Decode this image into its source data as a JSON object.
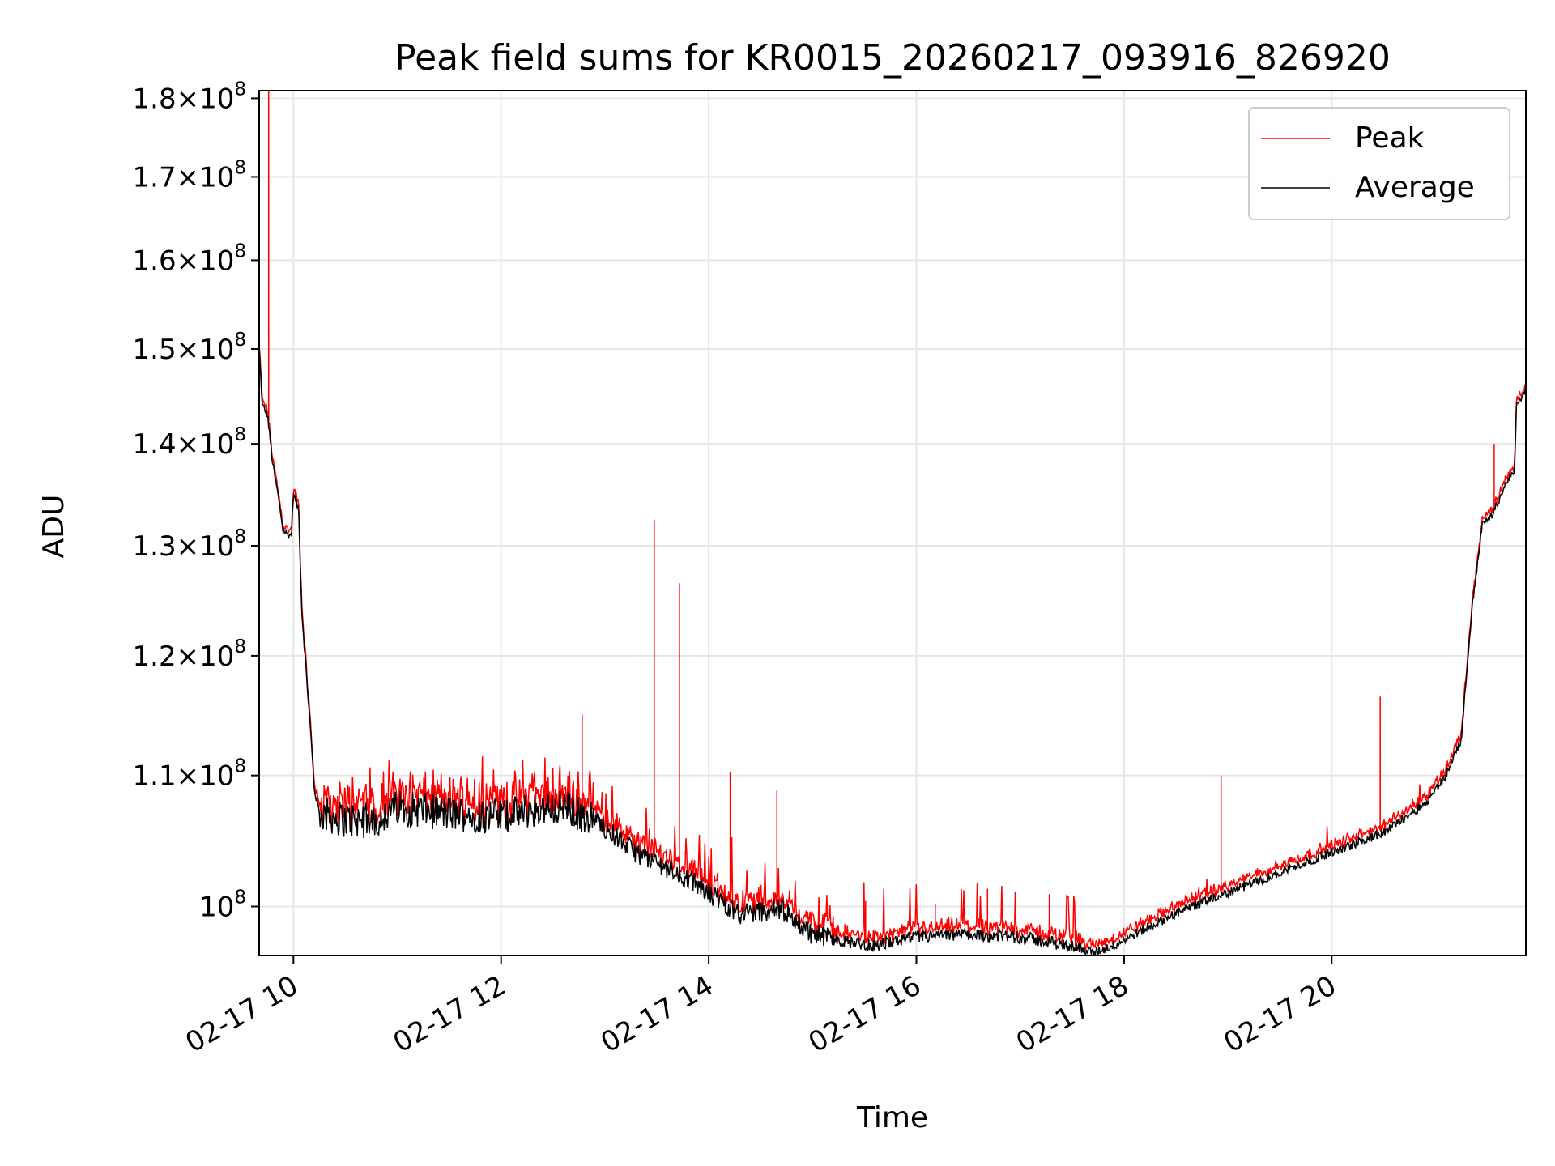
{
  "chart_data": {
    "type": "line",
    "title": "Peak field sums for KR0015_20260217_093916_826920",
    "xlabel": "Time",
    "ylabel": "ADU",
    "yscale": "log",
    "grid": true,
    "legend_position": "top-right",
    "xlim_hours": [
      9.67,
      21.87
    ],
    "ylim": [
      96500000,
      181000000
    ],
    "x_ticks": [
      {
        "value": 10,
        "label": "02-17 10"
      },
      {
        "value": 12,
        "label": "02-17 12"
      },
      {
        "value": 14,
        "label": "02-17 14"
      },
      {
        "value": 16,
        "label": "02-17 16"
      },
      {
        "value": 18,
        "label": "02-17 18"
      },
      {
        "value": 20,
        "label": "02-17 20"
      }
    ],
    "y_ticks": [
      {
        "value": 100000000,
        "mantissa": "",
        "exponent": "8",
        "label": "10^8"
      },
      {
        "value": 110000000,
        "mantissa": "1.1",
        "exponent": "8",
        "label": "1.1×10^8"
      },
      {
        "value": 120000000,
        "mantissa": "1.2",
        "exponent": "8",
        "label": "1.2×10^8"
      },
      {
        "value": 130000000,
        "mantissa": "1.3",
        "exponent": "8",
        "label": "1.3×10^8"
      },
      {
        "value": 140000000,
        "mantissa": "1.4",
        "exponent": "8",
        "label": "1.4×10^8"
      },
      {
        "value": 150000000,
        "mantissa": "1.5",
        "exponent": "8",
        "label": "1.5×10^8"
      },
      {
        "value": 160000000,
        "mantissa": "1.6",
        "exponent": "8",
        "label": "1.6×10^8"
      },
      {
        "value": 170000000,
        "mantissa": "1.7",
        "exponent": "8",
        "label": "1.7×10^8"
      },
      {
        "value": 180000000,
        "mantissa": "1.8",
        "exponent": "8",
        "label": "1.8×10^8"
      }
    ],
    "series": [
      {
        "name": "Peak",
        "color": "#ff0000",
        "key": "peak"
      },
      {
        "name": "Average",
        "color": "#000000",
        "key": "avg"
      }
    ],
    "baseline_units": "1e6 ADU",
    "baseline": [
      [
        9.67,
        150
      ],
      [
        9.7,
        144
      ],
      [
        9.75,
        143
      ],
      [
        9.8,
        138
      ],
      [
        9.85,
        135
      ],
      [
        9.9,
        131.5
      ],
      [
        9.95,
        131
      ],
      [
        9.98,
        131
      ],
      [
        10.0,
        135
      ],
      [
        10.05,
        133.5
      ],
      [
        10.08,
        124
      ],
      [
        10.12,
        119
      ],
      [
        10.17,
        113
      ],
      [
        10.2,
        109
      ],
      [
        10.25,
        107
      ],
      [
        10.5,
        106.5
      ],
      [
        10.8,
        106.5
      ],
      [
        11.0,
        107.5
      ],
      [
        11.5,
        107
      ],
      [
        12.0,
        106.8
      ],
      [
        12.3,
        107.3
      ],
      [
        12.6,
        107.5
      ],
      [
        12.9,
        106.5
      ],
      [
        13.3,
        104
      ],
      [
        13.7,
        102.5
      ],
      [
        14.0,
        101
      ],
      [
        14.3,
        99.5
      ],
      [
        14.7,
        99.8
      ],
      [
        15.0,
        98
      ],
      [
        15.3,
        97.5
      ],
      [
        15.6,
        97.2
      ],
      [
        16.0,
        97.8
      ],
      [
        16.5,
        98
      ],
      [
        17.0,
        97.8
      ],
      [
        17.3,
        97.4
      ],
      [
        17.5,
        97.2
      ],
      [
        17.7,
        96.7
      ],
      [
        17.9,
        97.2
      ],
      [
        18.1,
        98
      ],
      [
        18.5,
        99.5
      ],
      [
        19.0,
        101
      ],
      [
        19.5,
        102.5
      ],
      [
        20.0,
        104
      ],
      [
        20.5,
        105.5
      ],
      [
        20.9,
        107.8
      ],
      [
        21.1,
        110
      ],
      [
        21.25,
        113
      ],
      [
        21.35,
        124
      ],
      [
        21.45,
        132
      ],
      [
        21.55,
        133
      ],
      [
        21.7,
        136.5
      ],
      [
        21.76,
        137
      ],
      [
        21.78,
        144
      ],
      [
        21.87,
        145.5
      ]
    ],
    "peak_spikes": [
      [
        9.76,
        181
      ],
      [
        9.775,
        152
      ],
      [
        12.81,
        115
      ],
      [
        13.52,
        132.5
      ],
      [
        13.78,
        126.5
      ],
      [
        14.28,
        110.3
      ],
      [
        14.75,
        108.8
      ],
      [
        15.62,
        100.4
      ],
      [
        16.3,
        100.2
      ],
      [
        16.82,
        101.3
      ],
      [
        17.43,
        100.9
      ],
      [
        19.1,
        110
      ],
      [
        20.65,
        116.5
      ],
      [
        21.76,
        140
      ]
    ]
  }
}
